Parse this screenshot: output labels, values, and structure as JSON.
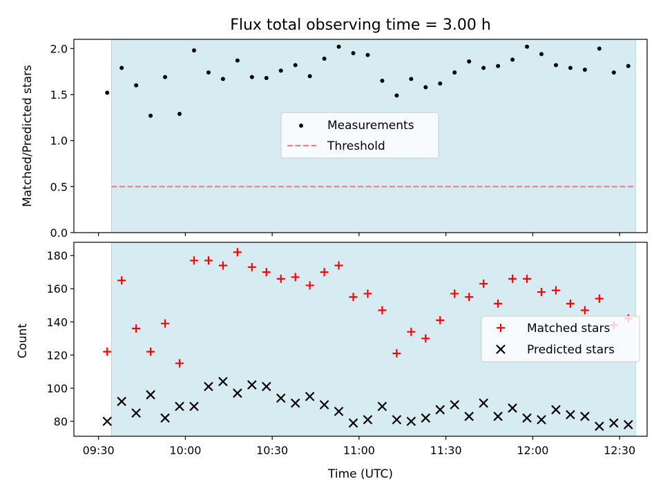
{
  "figure": {
    "title": "Flux total observing time = 3.00 h",
    "xlabel": "Time (UTC)",
    "x_ticks": [
      "09:30",
      "10:00",
      "10:30",
      "11:00",
      "11:30",
      "12:00",
      "12:30"
    ],
    "x_tick_minutes": [
      570,
      600,
      630,
      660,
      690,
      720,
      750
    ],
    "shaded_span_minutes": [
      574.5,
      755.5
    ],
    "colors": {
      "shade": "#add8e6",
      "measurement": "#000000",
      "threshold": "#f08080",
      "matched": "#ff0000",
      "predicted": "#000000"
    }
  },
  "chart_data": [
    {
      "type": "scatter",
      "ylabel": "Matched/Predicted stars",
      "ylim": [
        0,
        2.1
      ],
      "y_ticks": [
        "0.0",
        "0.5",
        "1.0",
        "1.5",
        "2.0"
      ],
      "y_tick_values": [
        0,
        0.5,
        1.0,
        1.5,
        2.0
      ],
      "legend_position": "center",
      "legend": [
        "Measurements",
        "Threshold"
      ],
      "threshold": 0.5,
      "x": [
        "09:33",
        "09:38",
        "09:43",
        "09:48",
        "09:53",
        "09:58",
        "10:03",
        "10:08",
        "10:13",
        "10:18",
        "10:23",
        "10:28",
        "10:33",
        "10:38",
        "10:43",
        "10:48",
        "10:53",
        "10:58",
        "11:03",
        "11:08",
        "11:13",
        "11:18",
        "11:23",
        "11:28",
        "11:33",
        "11:38",
        "11:43",
        "11:48",
        "11:53",
        "11:58",
        "12:03",
        "12:08",
        "12:13",
        "12:18",
        "12:23",
        "12:28",
        "12:33"
      ],
      "values": [
        1.52,
        1.79,
        1.6,
        1.27,
        1.69,
        1.29,
        1.98,
        1.74,
        1.67,
        1.87,
        1.69,
        1.68,
        1.76,
        1.82,
        1.7,
        1.89,
        2.02,
        1.95,
        1.93,
        1.65,
        1.49,
        1.67,
        1.58,
        1.62,
        1.74,
        1.86,
        1.79,
        1.81,
        1.88,
        2.02,
        1.94,
        1.82,
        1.79,
        1.77,
        2.0,
        1.74,
        1.81
      ]
    },
    {
      "type": "scatter",
      "ylabel": "Count",
      "ylim": [
        71,
        188
      ],
      "y_ticks": [
        "80",
        "100",
        "120",
        "140",
        "160",
        "180"
      ],
      "y_tick_values": [
        80,
        100,
        120,
        140,
        160,
        180
      ],
      "legend_position": "center-right",
      "x": [
        "09:33",
        "09:38",
        "09:43",
        "09:48",
        "09:53",
        "09:58",
        "10:03",
        "10:08",
        "10:13",
        "10:18",
        "10:23",
        "10:28",
        "10:33",
        "10:38",
        "10:43",
        "10:48",
        "10:53",
        "10:58",
        "11:03",
        "11:08",
        "11:13",
        "11:18",
        "11:23",
        "11:28",
        "11:33",
        "11:38",
        "11:43",
        "11:48",
        "11:53",
        "11:58",
        "12:03",
        "12:08",
        "12:13",
        "12:18",
        "12:23",
        "12:28",
        "12:33"
      ],
      "series": [
        {
          "name": "Matched stars",
          "values": [
            122,
            165,
            136,
            122,
            139,
            115,
            177,
            177,
            174,
            182,
            173,
            170,
            166,
            167,
            162,
            170,
            174,
            155,
            157,
            147,
            121,
            134,
            130,
            141,
            157,
            155,
            163,
            151,
            166,
            166,
            158,
            159,
            151,
            147,
            154,
            138,
            142
          ]
        },
        {
          "name": "Predicted stars",
          "values": [
            80,
            92,
            85,
            96,
            82,
            89,
            89,
            101,
            104,
            97,
            102,
            101,
            94,
            91,
            95,
            90,
            86,
            79,
            81,
            89,
            81,
            80,
            82,
            87,
            90,
            83,
            91,
            83,
            88,
            82,
            81,
            87,
            84,
            83,
            77,
            79,
            78
          ]
        }
      ]
    }
  ]
}
